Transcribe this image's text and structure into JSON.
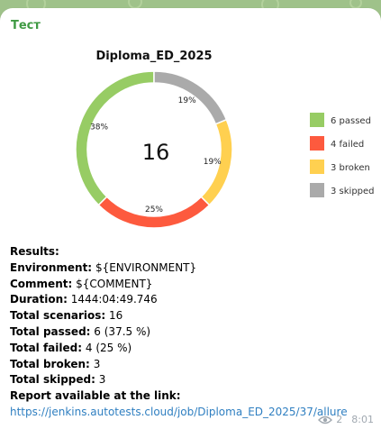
{
  "message": {
    "sender": "Тест",
    "views": "2",
    "time": "8:01"
  },
  "chart_data": {
    "type": "pie",
    "title": "Diploma_ED_2025",
    "center_label": "16",
    "series": [
      {
        "name": "6 passed",
        "value": 6,
        "label": "38%",
        "color": "#97cc64"
      },
      {
        "name": "4 failed",
        "value": 4,
        "label": "25%",
        "color": "#fd5a3e"
      },
      {
        "name": "3 broken",
        "value": 3,
        "label": "19%",
        "color": "#ffd050"
      },
      {
        "name": "3 skipped",
        "value": 3,
        "label": "19%",
        "color": "#aaaaaa"
      }
    ],
    "legend_position": "right"
  },
  "results": {
    "heading": "Results:",
    "environment_label": "Environment:",
    "environment_value": "${ENVIRONMENT}",
    "comment_label": "Comment:",
    "comment_value": "${COMMENT}",
    "duration_label": "Duration:",
    "duration_value": "1444:04:49.746",
    "total_label": "Total scenarios:",
    "total_value": "16",
    "passed_label": "Total passed:",
    "passed_value": "6 (37.5 %)",
    "failed_label": "Total failed:",
    "failed_value": "4 (25 %)",
    "broken_label": "Total broken:",
    "broken_value": "3",
    "skipped_label": "Total skipped:",
    "skipped_value": "3",
    "report_label": "Report available at the link:",
    "report_link": "https://jenkins.autotests.cloud/job/Diploma_ED_2025/37/allure"
  }
}
